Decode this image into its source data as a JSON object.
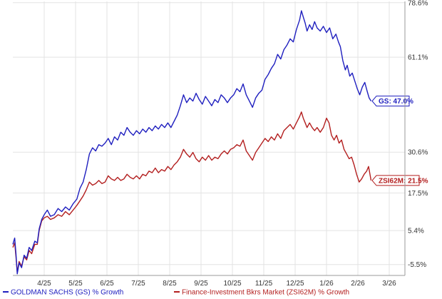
{
  "chart_data": {
    "type": "line",
    "title": "",
    "xlabel": "",
    "ylabel": "",
    "y_unit": "%",
    "y_ticks": [
      {
        "value": -5.5,
        "label": "-5.5%"
      },
      {
        "value": 5.4,
        "label": "5.4%"
      },
      {
        "value": 17.5,
        "label": "17.5%"
      },
      {
        "value": 30.6,
        "label": "30.6%"
      },
      {
        "value": 61.1,
        "label": "61.1%"
      },
      {
        "value": 78.6,
        "label": "78.6%"
      }
    ],
    "x_ticks": [
      "4/25",
      "5/25",
      "6/25",
      "7/25",
      "8/25",
      "9/25",
      "10/25",
      "11/25",
      "12/25",
      "1/26",
      "2/26",
      "3/26"
    ],
    "x_range": [
      0,
      12.5
    ],
    "ylim": [
      -9,
      79
    ],
    "grid": true,
    "legend_position": "bottom",
    "series": [
      {
        "name": "GOLDMAN SACHS (GS) % Growth",
        "color": "#1f1fbf",
        "callout": "GS: 47.0%",
        "last_value": 47.0,
        "points": [
          [
            0.0,
            1.0
          ],
          [
            0.06,
            3.0
          ],
          [
            0.1,
            -2.0
          ],
          [
            0.14,
            -8.5
          ],
          [
            0.2,
            -5.0
          ],
          [
            0.28,
            -6.5
          ],
          [
            0.36,
            -2.5
          ],
          [
            0.44,
            -3.5
          ],
          [
            0.52,
            0.0
          ],
          [
            0.6,
            -1.0
          ],
          [
            0.7,
            2.0
          ],
          [
            0.78,
            1.5
          ],
          [
            0.84,
            6.0
          ],
          [
            0.92,
            9.0
          ],
          [
            1.0,
            10.5
          ],
          [
            1.1,
            12.0
          ],
          [
            1.2,
            10.0
          ],
          [
            1.32,
            10.5
          ],
          [
            1.44,
            12.5
          ],
          [
            1.56,
            11.5
          ],
          [
            1.68,
            13.0
          ],
          [
            1.8,
            12.0
          ],
          [
            1.92,
            14.0
          ],
          [
            2.04,
            15.5
          ],
          [
            2.14,
            19.0
          ],
          [
            2.24,
            21.0
          ],
          [
            2.34,
            25.0
          ],
          [
            2.44,
            30.0
          ],
          [
            2.54,
            32.0
          ],
          [
            2.64,
            31.0
          ],
          [
            2.74,
            33.0
          ],
          [
            2.84,
            32.5
          ],
          [
            2.94,
            33.5
          ],
          [
            3.04,
            35.0
          ],
          [
            3.14,
            33.0
          ],
          [
            3.24,
            35.5
          ],
          [
            3.34,
            34.5
          ],
          [
            3.44,
            37.0
          ],
          [
            3.54,
            36.0
          ],
          [
            3.64,
            38.5
          ],
          [
            3.74,
            37.0
          ],
          [
            3.84,
            36.0
          ],
          [
            3.94,
            37.5
          ],
          [
            4.04,
            36.5
          ],
          [
            4.14,
            38.0
          ],
          [
            4.24,
            37.0
          ],
          [
            4.34,
            38.5
          ],
          [
            4.44,
            37.5
          ],
          [
            4.54,
            39.0
          ],
          [
            4.64,
            38.0
          ],
          [
            4.74,
            39.5
          ],
          [
            4.84,
            38.5
          ],
          [
            4.94,
            40.0
          ],
          [
            5.04,
            38.5
          ],
          [
            5.14,
            40.5
          ],
          [
            5.24,
            42.5
          ],
          [
            5.34,
            45.5
          ],
          [
            5.44,
            49.0
          ],
          [
            5.54,
            46.5
          ],
          [
            5.64,
            48.0
          ],
          [
            5.74,
            47.0
          ],
          [
            5.84,
            49.5
          ],
          [
            5.94,
            47.5
          ],
          [
            6.04,
            46.0
          ],
          [
            6.14,
            48.5
          ],
          [
            6.24,
            47.0
          ],
          [
            6.34,
            45.5
          ],
          [
            6.44,
            47.5
          ],
          [
            6.54,
            46.5
          ],
          [
            6.64,
            49.0
          ],
          [
            6.74,
            48.0
          ],
          [
            6.84,
            46.5
          ],
          [
            6.94,
            48.0
          ],
          [
            7.04,
            49.0
          ],
          [
            7.14,
            51.0
          ],
          [
            7.24,
            50.0
          ],
          [
            7.34,
            52.5
          ],
          [
            7.44,
            49.0
          ],
          [
            7.54,
            47.0
          ],
          [
            7.64,
            45.0
          ],
          [
            7.74,
            48.0
          ],
          [
            7.84,
            49.5
          ],
          [
            7.94,
            50.5
          ],
          [
            8.04,
            54.0
          ],
          [
            8.14,
            55.5
          ],
          [
            8.24,
            57.5
          ],
          [
            8.34,
            59.0
          ],
          [
            8.44,
            62.0
          ],
          [
            8.54,
            60.5
          ],
          [
            8.64,
            63.5
          ],
          [
            8.74,
            65.0
          ],
          [
            8.84,
            67.0
          ],
          [
            8.94,
            66.0
          ],
          [
            9.04,
            70.0
          ],
          [
            9.14,
            73.0
          ],
          [
            9.2,
            76.0
          ],
          [
            9.26,
            74.0
          ],
          [
            9.32,
            72.0
          ],
          [
            9.38,
            69.5
          ],
          [
            9.46,
            71.5
          ],
          [
            9.54,
            70.0
          ],
          [
            9.62,
            72.5
          ],
          [
            9.7,
            70.5
          ],
          [
            9.8,
            69.5
          ],
          [
            9.9,
            71.0
          ],
          [
            10.0,
            69.0
          ],
          [
            10.1,
            70.5
          ],
          [
            10.2,
            67.0
          ],
          [
            10.3,
            68.5
          ],
          [
            10.38,
            66.0
          ],
          [
            10.44,
            64.5
          ],
          [
            10.52,
            60.0
          ],
          [
            10.6,
            57.0
          ],
          [
            10.66,
            58.5
          ],
          [
            10.74,
            55.0
          ],
          [
            10.82,
            56.0
          ],
          [
            10.9,
            53.5
          ],
          [
            10.98,
            51.0
          ],
          [
            11.06,
            49.0
          ],
          [
            11.14,
            51.5
          ],
          [
            11.22,
            53.0
          ],
          [
            11.3,
            50.0
          ],
          [
            11.36,
            48.0
          ],
          [
            11.42,
            47.0
          ]
        ]
      },
      {
        "name": "Finance-Investment Bkrs Market (ZSI62M) % Growth",
        "color": "#b31f1f",
        "callout": "ZSI62M: 21.5%",
        "last_value": 21.5,
        "points": [
          [
            0.0,
            0.0
          ],
          [
            0.06,
            1.5
          ],
          [
            0.1,
            -3.0
          ],
          [
            0.14,
            -8.0
          ],
          [
            0.2,
            -4.5
          ],
          [
            0.28,
            -6.0
          ],
          [
            0.36,
            -3.0
          ],
          [
            0.44,
            -4.0
          ],
          [
            0.52,
            -1.0
          ],
          [
            0.6,
            -2.0
          ],
          [
            0.7,
            1.0
          ],
          [
            0.78,
            1.0
          ],
          [
            0.84,
            5.5
          ],
          [
            0.92,
            8.5
          ],
          [
            1.0,
            9.5
          ],
          [
            1.1,
            10.0
          ],
          [
            1.2,
            9.0
          ],
          [
            1.32,
            9.5
          ],
          [
            1.44,
            10.5
          ],
          [
            1.56,
            10.0
          ],
          [
            1.68,
            11.5
          ],
          [
            1.8,
            10.5
          ],
          [
            1.92,
            12.0
          ],
          [
            2.04,
            13.5
          ],
          [
            2.14,
            15.0
          ],
          [
            2.24,
            16.5
          ],
          [
            2.34,
            18.5
          ],
          [
            2.44,
            21.0
          ],
          [
            2.54,
            20.0
          ],
          [
            2.64,
            20.5
          ],
          [
            2.74,
            21.5
          ],
          [
            2.84,
            20.5
          ],
          [
            2.94,
            21.0
          ],
          [
            3.04,
            23.0
          ],
          [
            3.14,
            22.0
          ],
          [
            3.24,
            21.5
          ],
          [
            3.34,
            22.5
          ],
          [
            3.44,
            21.5
          ],
          [
            3.54,
            22.0
          ],
          [
            3.64,
            23.5
          ],
          [
            3.74,
            22.5
          ],
          [
            3.84,
            22.0
          ],
          [
            3.94,
            23.0
          ],
          [
            4.04,
            22.0
          ],
          [
            4.14,
            23.5
          ],
          [
            4.24,
            23.0
          ],
          [
            4.34,
            24.5
          ],
          [
            4.44,
            24.0
          ],
          [
            4.54,
            25.5
          ],
          [
            4.64,
            24.0
          ],
          [
            4.74,
            25.0
          ],
          [
            4.84,
            24.5
          ],
          [
            4.94,
            26.0
          ],
          [
            5.04,
            25.0
          ],
          [
            5.14,
            26.5
          ],
          [
            5.24,
            27.5
          ],
          [
            5.34,
            29.0
          ],
          [
            5.44,
            31.5
          ],
          [
            5.54,
            30.0
          ],
          [
            5.64,
            29.0
          ],
          [
            5.74,
            30.5
          ],
          [
            5.84,
            28.5
          ],
          [
            5.94,
            27.5
          ],
          [
            6.04,
            29.0
          ],
          [
            6.14,
            28.0
          ],
          [
            6.24,
            29.5
          ],
          [
            6.34,
            28.0
          ],
          [
            6.44,
            29.0
          ],
          [
            6.54,
            28.5
          ],
          [
            6.64,
            30.0
          ],
          [
            6.74,
            31.0
          ],
          [
            6.84,
            30.0
          ],
          [
            6.94,
            31.5
          ],
          [
            7.04,
            32.0
          ],
          [
            7.14,
            33.0
          ],
          [
            7.24,
            32.5
          ],
          [
            7.34,
            34.5
          ],
          [
            7.44,
            31.0
          ],
          [
            7.54,
            29.5
          ],
          [
            7.64,
            28.0
          ],
          [
            7.74,
            30.5
          ],
          [
            7.84,
            32.0
          ],
          [
            7.94,
            33.5
          ],
          [
            8.04,
            35.0
          ],
          [
            8.14,
            34.0
          ],
          [
            8.24,
            35.5
          ],
          [
            8.34,
            34.5
          ],
          [
            8.44,
            36.5
          ],
          [
            8.54,
            35.0
          ],
          [
            8.64,
            37.5
          ],
          [
            8.74,
            38.5
          ],
          [
            8.84,
            39.5
          ],
          [
            8.94,
            38.0
          ],
          [
            9.04,
            40.0
          ],
          [
            9.14,
            42.0
          ],
          [
            9.2,
            43.5
          ],
          [
            9.26,
            41.5
          ],
          [
            9.32,
            40.0
          ],
          [
            9.38,
            38.5
          ],
          [
            9.46,
            40.0
          ],
          [
            9.54,
            38.5
          ],
          [
            9.62,
            37.5
          ],
          [
            9.7,
            38.5
          ],
          [
            9.8,
            37.0
          ],
          [
            9.9,
            38.5
          ],
          [
            10.0,
            41.5
          ],
          [
            10.08,
            40.0
          ],
          [
            10.16,
            36.0
          ],
          [
            10.24,
            34.5
          ],
          [
            10.32,
            36.0
          ],
          [
            10.4,
            33.5
          ],
          [
            10.48,
            34.5
          ],
          [
            10.56,
            31.5
          ],
          [
            10.64,
            30.0
          ],
          [
            10.72,
            28.5
          ],
          [
            10.8,
            29.0
          ],
          [
            10.88,
            26.5
          ],
          [
            10.96,
            23.5
          ],
          [
            11.04,
            21.0
          ],
          [
            11.12,
            22.0
          ],
          [
            11.2,
            23.5
          ],
          [
            11.28,
            24.5
          ],
          [
            11.34,
            26.0
          ],
          [
            11.42,
            21.5
          ]
        ]
      }
    ]
  }
}
